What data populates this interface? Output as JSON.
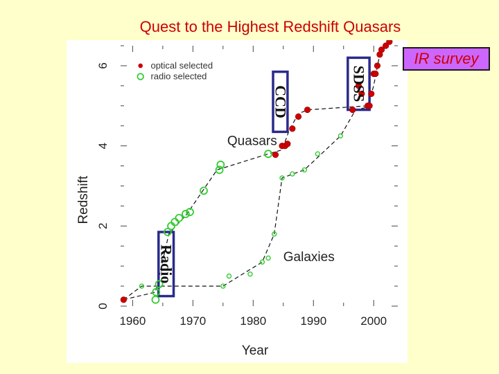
{
  "slide": {
    "title": "Quest to the Highest Redshift Quasars",
    "ir_label": "IR survey"
  },
  "chart_data": {
    "type": "scatter",
    "xlabel": "Year",
    "ylabel": "Redshift",
    "xlim": [
      1958,
      2004
    ],
    "ylim": [
      0,
      6.5
    ],
    "x_ticks": [
      1960,
      1970,
      1980,
      1990,
      2000
    ],
    "x_tick_labels": [
      "1960",
      "1970",
      "1980",
      "1990",
      "2000"
    ],
    "y_ticks": [
      0,
      2,
      4,
      6
    ],
    "y_tick_labels": [
      "0",
      "2",
      "4",
      "6"
    ],
    "legend": [
      {
        "label": "optical selected",
        "color": "#cc0000",
        "marker": "filled-circle"
      },
      {
        "label": "radio selected",
        "color": "#33cc33",
        "marker": "open-circle"
      }
    ],
    "annotations": [
      "Quasars",
      "Galaxies"
    ],
    "era_boxes": [
      "Radio",
      "CCD",
      "SDSS"
    ],
    "series": [
      {
        "name": "Quasars optical selected",
        "color": "#cc0000",
        "marker": "filled",
        "points": [
          [
            1958.5,
            0.16
          ],
          [
            1983.7,
            3.78
          ],
          [
            1984.8,
            4.0
          ],
          [
            1985.3,
            4.0
          ],
          [
            1985.7,
            4.05
          ],
          [
            1986.5,
            4.43
          ],
          [
            1987.5,
            4.73
          ],
          [
            1989.0,
            4.9
          ],
          [
            1996.5,
            4.9
          ],
          [
            1997.5,
            5.5
          ],
          [
            1998.0,
            5.3
          ],
          [
            1999.0,
            5.0
          ],
          [
            1999.3,
            5.0
          ],
          [
            1999.6,
            5.3
          ],
          [
            2000.0,
            5.8
          ],
          [
            2000.3,
            5.8
          ],
          [
            2000.6,
            6.0
          ],
          [
            2001.0,
            6.28
          ],
          [
            2001.3,
            6.4
          ],
          [
            2002.0,
            6.5
          ],
          [
            2002.6,
            6.6
          ]
        ]
      },
      {
        "name": "Quasars radio selected",
        "color": "#33cc33",
        "marker": "open",
        "points": [
          [
            1963.8,
            0.16
          ],
          [
            1963.9,
            0.35
          ],
          [
            1964.4,
            0.55
          ],
          [
            1965.8,
            1.85
          ],
          [
            1966.4,
            2.0
          ],
          [
            1967.0,
            2.1
          ],
          [
            1967.7,
            2.2
          ],
          [
            1968.8,
            2.3
          ],
          [
            1969.5,
            2.35
          ],
          [
            1971.8,
            2.88
          ],
          [
            1974.4,
            3.4
          ],
          [
            1974.6,
            3.53
          ],
          [
            1982.5,
            3.8
          ]
        ]
      },
      {
        "name": "Galaxies radio selected",
        "color": "#33cc33",
        "marker": "open-small",
        "points": [
          [
            1961.5,
            0.5
          ],
          [
            1975.0,
            0.5
          ],
          [
            1976.0,
            0.75
          ],
          [
            1979.5,
            0.8
          ],
          [
            1981.5,
            1.1
          ],
          [
            1982.5,
            1.2
          ],
          [
            1983.5,
            1.8
          ],
          [
            1984.8,
            3.2
          ],
          [
            1986.5,
            3.3
          ],
          [
            1988.5,
            3.4
          ],
          [
            1990.7,
            3.8
          ],
          [
            1994.5,
            4.25
          ]
        ]
      }
    ],
    "envelopes": [
      {
        "name": "Quasars",
        "points": [
          [
            1958.5,
            0.16
          ],
          [
            1963.8,
            0.35
          ],
          [
            1966.0,
            1.8
          ],
          [
            1969.0,
            2.3
          ],
          [
            1974.0,
            3.4
          ],
          [
            1982.5,
            3.8
          ],
          [
            1984.8,
            3.9
          ],
          [
            1986.0,
            4.4
          ],
          [
            1987.5,
            4.8
          ],
          [
            1989.0,
            4.9
          ],
          [
            1999.0,
            5.0
          ],
          [
            2000.0,
            5.5
          ],
          [
            2001.0,
            6.28
          ],
          [
            2002.0,
            6.5
          ]
        ]
      },
      {
        "name": "Galaxies",
        "points": [
          [
            1958.5,
            0.16
          ],
          [
            1961.5,
            0.5
          ],
          [
            1975.0,
            0.5
          ],
          [
            1981.5,
            1.1
          ],
          [
            1983.5,
            1.8
          ],
          [
            1984.8,
            3.2
          ],
          [
            1988.5,
            3.4
          ],
          [
            1994.5,
            4.25
          ],
          [
            1997.0,
            4.9
          ],
          [
            2000.0,
            5.0
          ]
        ]
      }
    ]
  }
}
